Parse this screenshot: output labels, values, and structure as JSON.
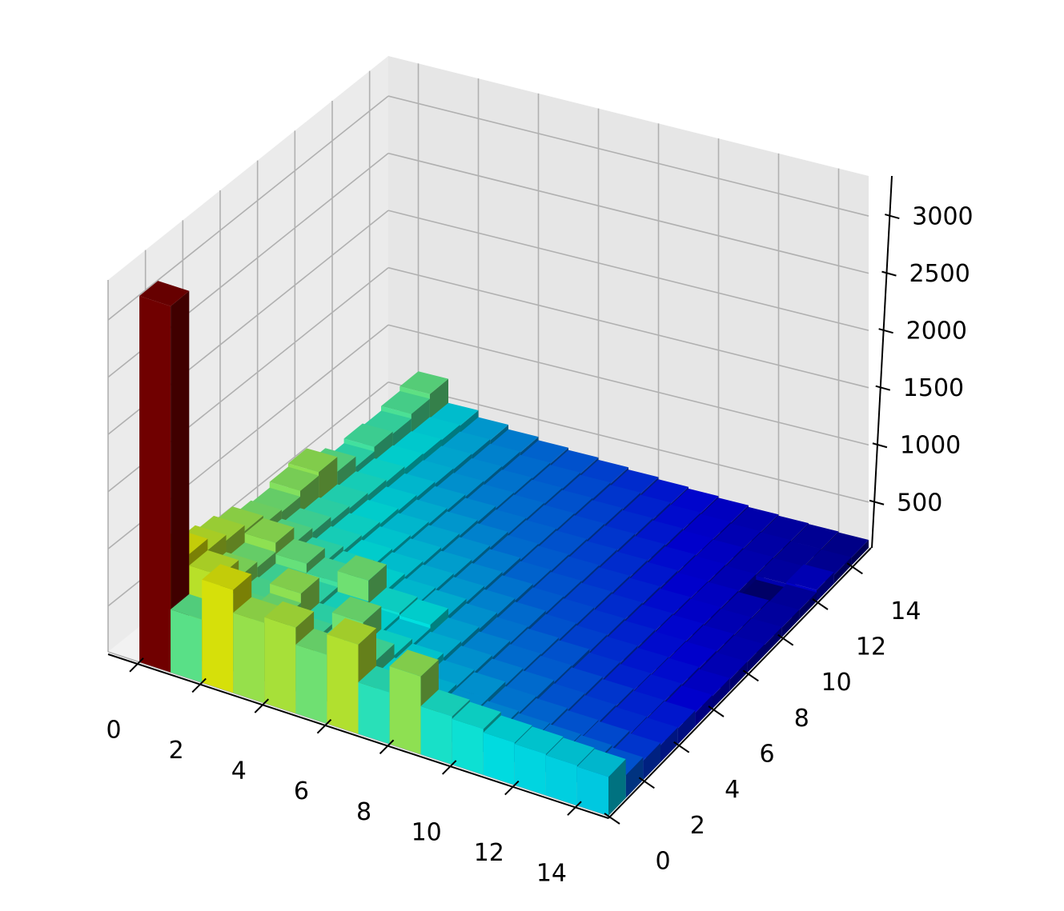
{
  "chart_data": {
    "type": "bar3d",
    "x": [
      0,
      1,
      2,
      3,
      4,
      5,
      6,
      7,
      8,
      9,
      10,
      11,
      12,
      13,
      14
    ],
    "y": [
      0,
      1,
      2,
      3,
      4,
      5,
      6,
      7,
      8,
      9,
      10,
      11,
      12,
      13,
      14
    ],
    "values": [
      [
        3300,
        650,
        1000,
        800,
        850,
        700,
        880,
        550,
        780,
        520,
        500,
        470,
        460,
        450,
        440
      ],
      [
        1000,
        900,
        650,
        700,
        600,
        560,
        600,
        480,
        420,
        380,
        360,
        340,
        330,
        320,
        300
      ],
      [
        900,
        750,
        620,
        780,
        560,
        700,
        500,
        460,
        400,
        380,
        340,
        320,
        300,
        290,
        270
      ],
      [
        850,
        700,
        600,
        560,
        520,
        480,
        450,
        420,
        380,
        350,
        330,
        300,
        280,
        260,
        250
      ],
      [
        800,
        780,
        680,
        600,
        700,
        500,
        480,
        400,
        360,
        330,
        310,
        290,
        270,
        250,
        240
      ],
      [
        720,
        640,
        560,
        520,
        480,
        440,
        420,
        380,
        340,
        320,
        300,
        270,
        250,
        240,
        220
      ],
      [
        700,
        600,
        520,
        480,
        450,
        420,
        390,
        360,
        330,
        300,
        280,
        260,
        240,
        230,
        210
      ],
      [
        750,
        560,
        500,
        460,
        430,
        400,
        370,
        340,
        310,
        290,
        270,
        250,
        230,
        220,
        200
      ],
      [
        780,
        540,
        480,
        440,
        410,
        380,
        350,
        320,
        300,
        280,
        260,
        240,
        225,
        210,
        195
      ],
      [
        650,
        520,
        460,
        420,
        390,
        360,
        330,
        310,
        290,
        270,
        250,
        230,
        215,
        200,
        190
      ],
      [
        560,
        500,
        440,
        400,
        370,
        340,
        320,
        300,
        280,
        260,
        240,
        220,
        210,
        195,
        185
      ],
      [
        600,
        480,
        420,
        380,
        350,
        330,
        310,
        290,
        270,
        250,
        230,
        215,
        200,
        150,
        180
      ],
      [
        580,
        470,
        410,
        370,
        340,
        320,
        300,
        280,
        260,
        240,
        220,
        210,
        195,
        185,
        200
      ],
      [
        620,
        460,
        400,
        360,
        330,
        310,
        290,
        270,
        250,
        230,
        215,
        200,
        190,
        180,
        175
      ],
      [
        660,
        450,
        390,
        350,
        320,
        300,
        280,
        260,
        240,
        225,
        210,
        195,
        185,
        178,
        170
      ]
    ],
    "xlim": [
      -1,
      15
    ],
    "ylim": [
      0,
      15
    ],
    "zlim": [
      100,
      3350
    ],
    "xticks": [
      0,
      2,
      4,
      6,
      8,
      10,
      12,
      14
    ],
    "yticks": [
      0,
      2,
      4,
      6,
      8,
      10,
      12,
      14
    ],
    "zticks": [
      500,
      1000,
      1500,
      2000,
      2500,
      3000
    ],
    "colormap": "jet",
    "color_norm": "log",
    "grid": true
  }
}
